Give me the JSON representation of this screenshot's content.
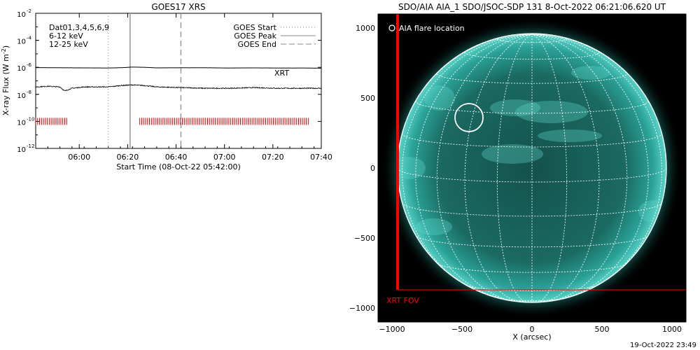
{
  "chart_data": [
    {
      "type": "line",
      "title": "GOES17 XRS",
      "xlabel": "Start Time (08-Oct-22 05:42:00)",
      "ylabel": "X-ray Flux (W m",
      "ylabel_sup": "-2",
      "ylabel_close": ")",
      "y_scale": "log",
      "ylim": [
        1e-12,
        0.01
      ],
      "y_ticks": [
        {
          "value": -2,
          "base": "10",
          "exp": "-2"
        },
        {
          "value": -4,
          "base": "10",
          "exp": "-4"
        },
        {
          "value": -6,
          "base": "10",
          "exp": "-6"
        },
        {
          "value": -8,
          "base": "10",
          "exp": "-8"
        },
        {
          "value": -10,
          "base": "10",
          "exp": "-10"
        },
        {
          "value": -12,
          "base": "10",
          "exp": "-12"
        }
      ],
      "xlim_minutes_after_0542": [
        0,
        118
      ],
      "x_ticks": [
        {
          "label": "06:00",
          "minutes": 18
        },
        {
          "label": "06:20",
          "minutes": 38
        },
        {
          "label": "06:40",
          "minutes": 58
        },
        {
          "label": "07:00",
          "minutes": 78
        },
        {
          "label": "07:20",
          "minutes": 98
        },
        {
          "label": "07:40",
          "minutes": 118
        }
      ],
      "annotations": {
        "datasets": "Dat01,3,4,5,6,9",
        "band1": "6-12 keV",
        "band2": "12-25 keV",
        "xrt_label": "XRT"
      },
      "colors": {
        "band1": "#dd00dd",
        "band2": "#00cc00",
        "xrt": "#dd0000"
      },
      "legend": {
        "placement": "top-right",
        "entries": [
          {
            "label": "GOES Start",
            "style": "dotted"
          },
          {
            "label": "GOES Peak",
            "style": "solid"
          },
          {
            "label": "GOES End",
            "style": "dashed"
          }
        ]
      },
      "vertical_markers": [
        {
          "name": "GOES Start",
          "minutes": 30,
          "style": "dotted"
        },
        {
          "name": "GOES Peak",
          "minutes": 39,
          "style": "solid"
        },
        {
          "name": "GOES End",
          "minutes": 60,
          "style": "dashed"
        }
      ],
      "series": [
        {
          "band": "long",
          "x_minutes": [
            0,
            10,
            20,
            30,
            36,
            40,
            45,
            50,
            60,
            70,
            80,
            90,
            100,
            110,
            118
          ],
          "log10_flux": [
            -6.02,
            -6.03,
            -6.04,
            -6.05,
            -6.02,
            -5.98,
            -6.0,
            -6.04,
            -6.03,
            -6.03,
            -6.05,
            -6.04,
            -6.05,
            -6.05,
            -6.06
          ]
        },
        {
          "band": "short",
          "x_minutes": [
            0,
            5,
            10,
            12,
            15,
            20,
            25,
            30,
            35,
            40,
            45,
            50,
            60,
            70,
            80,
            90,
            100,
            110,
            118
          ],
          "log10_flux": [
            -7.45,
            -7.4,
            -7.45,
            -7.75,
            -7.55,
            -7.45,
            -7.45,
            -7.45,
            -7.35,
            -7.3,
            -7.35,
            -7.45,
            -7.5,
            -7.55,
            -7.55,
            -7.5,
            -7.55,
            -7.55,
            -7.55
          ]
        }
      ],
      "xrt_coverage_minutes": [
        [
          0,
          13
        ],
        [
          43,
          113
        ]
      ],
      "xrt_coverage_log10_flux": -10
    },
    {
      "type": "image",
      "title": "SDO/AIA AIA_1 SDO/JSOC-SDP 131  8-Oct-2022 06:21:06.620 UT",
      "xlabel": "X (arcsec)",
      "xlim": [
        -1100,
        1100
      ],
      "ylim": [
        -1100,
        1100
      ],
      "x_ticks": [
        {
          "label": "−1000",
          "value": -1000
        },
        {
          "label": "−500",
          "value": -500
        },
        {
          "label": "0",
          "value": 0
        },
        {
          "label": "500",
          "value": 500
        },
        {
          "label": "1000",
          "value": 1000
        }
      ],
      "y_ticks": [
        {
          "label": "1000",
          "value": 1000
        },
        {
          "label": "500",
          "value": 500
        },
        {
          "label": "0",
          "value": 0
        },
        {
          "label": "−500",
          "value": -500
        },
        {
          "label": "−1000",
          "value": -1000
        }
      ],
      "flare_label": "AIA flare location",
      "flare_location": {
        "x": -450,
        "y": 360,
        "radius": 100
      },
      "fov_label": "XRT FOV",
      "xrt_fov": {
        "x0": -960,
        "y0": -870,
        "x1": 1100,
        "y1": 1100
      },
      "solar_radius": 960,
      "colors": {
        "disk": "#2aaea3",
        "fov": "#ff0000"
      }
    }
  ],
  "footer": {
    "timestamp": "19-Oct-2022 23:49"
  }
}
